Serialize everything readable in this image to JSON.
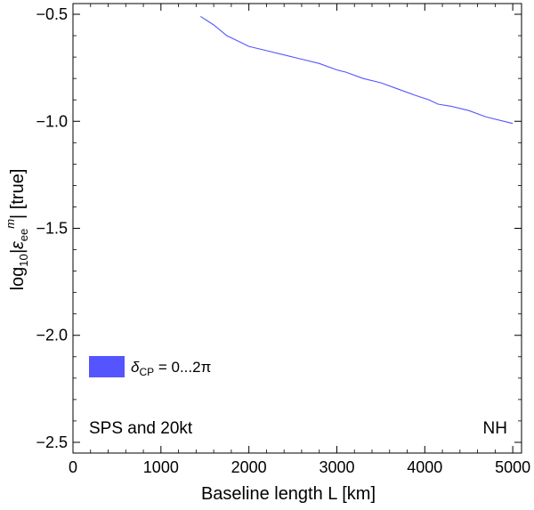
{
  "chart_data": {
    "type": "line",
    "title": "",
    "xlabel": "Baseline length L [km]",
    "ylabel_parts": {
      "log": "log",
      "log_sub": "10",
      "eps": "|ε",
      "eps_sub": "ee",
      "eps_sup": "m",
      "rest": "| [true]"
    },
    "xlim": [
      0,
      5100
    ],
    "ylim": [
      -2.55,
      -0.45
    ],
    "x_ticks": [
      0,
      1000,
      2000,
      3000,
      4000,
      5000
    ],
    "x_tick_labels": [
      "0",
      "1000",
      "2000",
      "3000",
      "4000",
      "5000"
    ],
    "y_ticks": [
      -0.5,
      -1.0,
      -1.5,
      -2.0,
      -2.5
    ],
    "y_tick_labels": [
      "−0.5",
      "−1.0",
      "−1.5",
      "−2.0",
      "−2.5"
    ],
    "grid": false,
    "color": "#5555ff",
    "series": [
      {
        "x": [
          1450,
          1600,
          1750,
          1900,
          2000,
          2200,
          2400,
          2600,
          2800,
          3000,
          3100,
          3300,
          3500,
          3700,
          3900,
          4050,
          4150,
          4300,
          4500,
          4700,
          5000
        ],
        "y": [
          -0.51,
          -0.55,
          -0.6,
          -0.63,
          -0.65,
          -0.67,
          -0.69,
          -0.71,
          -0.73,
          -0.76,
          -0.77,
          -0.8,
          -0.82,
          -0.85,
          -0.88,
          -0.9,
          -0.92,
          -0.93,
          -0.95,
          -0.98,
          -1.01
        ]
      }
    ],
    "legend": {
      "placement": "bottom-left",
      "label_delta": "δ",
      "label_sub": "CP",
      "label_rest": " = 0...2π"
    },
    "annotations": {
      "left": "SPS and 20kt",
      "right": "NH"
    }
  }
}
